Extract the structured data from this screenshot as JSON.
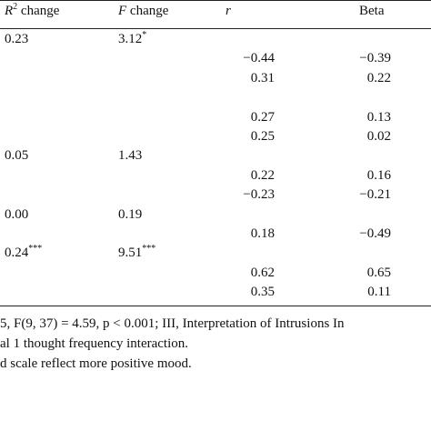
{
  "table": {
    "header": [
      {
        "text": "R",
        "sup": "2",
        "tail": " change"
      },
      {
        "text": "F",
        "tail": " change"
      },
      {
        "text": "r"
      },
      {
        "text": "Beta"
      }
    ],
    "rows": [
      [
        {
          "text": "0.23"
        },
        {
          "text": "3.12",
          "sup": "*"
        },
        null,
        null
      ],
      [
        null,
        null,
        {
          "text": "−0.44"
        },
        {
          "text": "−0.39"
        }
      ],
      [
        null,
        null,
        {
          "text": "0.31"
        },
        {
          "text": "0.22"
        }
      ],
      [
        null,
        null,
        null,
        null
      ],
      [
        null,
        null,
        {
          "text": "0.27"
        },
        {
          "text": "0.13"
        }
      ],
      [
        null,
        null,
        {
          "text": "0.25"
        },
        {
          "text": "0.02"
        }
      ],
      [
        {
          "text": "0.05"
        },
        {
          "text": "1.43"
        },
        null,
        null
      ],
      [
        null,
        null,
        {
          "text": "0.22"
        },
        {
          "text": "0.16"
        }
      ],
      [
        null,
        null,
        {
          "text": "−0.23"
        },
        {
          "text": "−0.21"
        }
      ],
      [
        {
          "text": "0.00"
        },
        {
          "text": "0.19"
        },
        null,
        null
      ],
      [
        null,
        null,
        {
          "text": "0.18"
        },
        {
          "text": "−0.49"
        }
      ],
      [
        {
          "text": "0.24",
          "sup": "***"
        },
        {
          "text": "9.51",
          "sup": "***"
        },
        null,
        null
      ],
      [
        null,
        null,
        {
          "text": "0.62"
        },
        {
          "text": "0.65"
        }
      ],
      [
        null,
        null,
        {
          "text": "0.35"
        },
        {
          "text": "0.11"
        }
      ]
    ]
  },
  "footnotes": [
    "5, F(9, 37) = 4.59, p < 0.001; III, Interpretation of Intrusions In",
    "al 1 thought frequency interaction.",
    "d scale reflect more positive mood."
  ]
}
